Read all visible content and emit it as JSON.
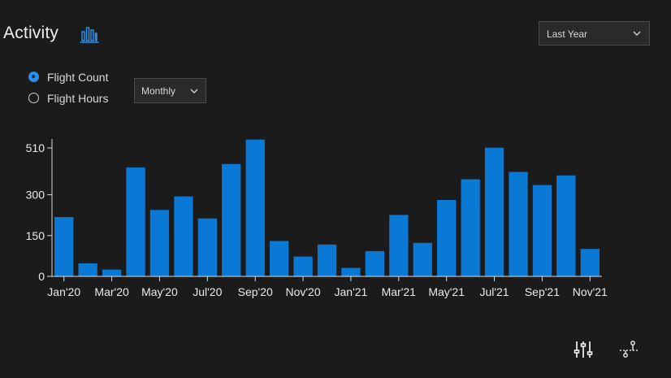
{
  "header": {
    "title": "Activity",
    "chart_icon": "bar-chart-icon",
    "range_select": {
      "value": "Last Year",
      "icon": "chevron-down-icon"
    }
  },
  "controls": {
    "metric_options": [
      {
        "label": "Flight Count",
        "checked": true
      },
      {
        "label": "Flight Hours",
        "checked": false
      }
    ],
    "interval_select": {
      "value": "Monthly",
      "icon": "chevron-down-icon"
    }
  },
  "footer": {
    "settings_icon": "sliders-icon",
    "export_icon": "share-node-icon"
  },
  "colors": {
    "background": "#1b1b1b",
    "bar": "#0a79d6",
    "accent": "#2a8ee8",
    "text": "#e6e6e6"
  },
  "chart_data": {
    "type": "bar",
    "categories": [
      "Jan'20",
      "Feb'20",
      "Mar'20",
      "Apr'20",
      "May'20",
      "Jun'20",
      "Jul'20",
      "Aug'20",
      "Sep'20",
      "Oct'20",
      "Nov'20",
      "Dec'20",
      "Jan'21",
      "Feb'21",
      "Mar'21",
      "Apr'21",
      "May'21",
      "Jun'21",
      "Jul'21",
      "Aug'21",
      "Sep'21",
      "Oct'21",
      "Nov'21"
    ],
    "tick_labels": [
      "Jan'20",
      "Mar'20",
      "May'20",
      "Jul'20",
      "Sep'20",
      "Nov'20",
      "Jan'21",
      "Mar'21",
      "May'21",
      "Jul'21",
      "Sep'21",
      "Nov'21"
    ],
    "values": [
      218,
      48,
      25,
      400,
      244,
      294,
      213,
      413,
      503,
      130,
      73,
      117,
      31,
      93,
      226,
      123,
      281,
      357,
      473,
      384,
      336,
      371,
      101
    ],
    "yticks": [
      0,
      150,
      300,
      510
    ],
    "ylim": [
      0,
      505
    ],
    "title": "",
    "xlabel": "",
    "ylabel": "",
    "grid": false,
    "legend": "none"
  }
}
